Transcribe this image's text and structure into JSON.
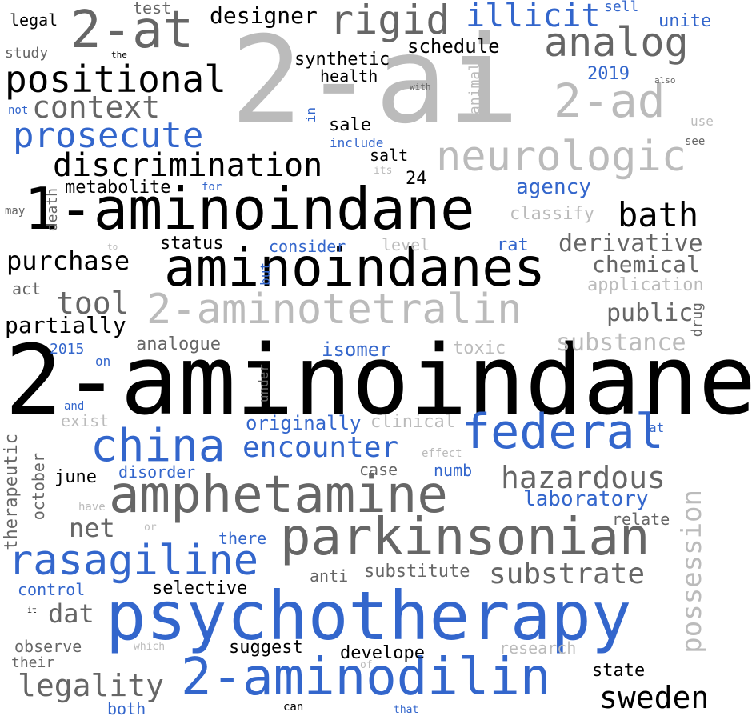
{
  "colors": {
    "black": "#000000",
    "dark_gray": "#666666",
    "light_gray": "#bbbbbb",
    "blue": "#3366cc"
  },
  "words": [
    {
      "id": "2-ai",
      "text": "2-ai"
    },
    {
      "id": "2-aminoindane",
      "text": "2-aminoindane"
    },
    {
      "id": "1-aminoindane",
      "text": "1-aminoindane"
    },
    {
      "id": "aminoindanes",
      "text": "aminoindanes"
    },
    {
      "id": "psychotherapy",
      "text": "psychotherapy"
    },
    {
      "id": "2-aminotetralin",
      "text": "2-aminotetralin"
    },
    {
      "id": "amphetamine",
      "text": "amphetamine"
    },
    {
      "id": "parkinsonian",
      "text": "parkinsonian"
    },
    {
      "id": "2-aminodilin",
      "text": "2-aminodilin"
    },
    {
      "id": "2-at",
      "text": "2-at"
    },
    {
      "id": "federal",
      "text": "federal"
    },
    {
      "id": "neurologic",
      "text": "neurologic"
    },
    {
      "id": "2-ad",
      "text": "2-ad"
    },
    {
      "id": "china",
      "text": "china"
    },
    {
      "id": "rasagiline",
      "text": "rasagiline"
    },
    {
      "id": "positional",
      "text": "positional"
    },
    {
      "id": "analog",
      "text": "analog"
    },
    {
      "id": "discrimination",
      "text": "discrimination"
    },
    {
      "id": "rigid",
      "text": "rigid"
    },
    {
      "id": "encounter",
      "text": "encounter"
    },
    {
      "id": "prosecute",
      "text": "prosecute"
    },
    {
      "id": "illicit",
      "text": "illicit"
    },
    {
      "id": "hazardous",
      "text": "hazardous"
    },
    {
      "id": "substrate",
      "text": "substrate"
    },
    {
      "id": "possession",
      "text": "possession"
    },
    {
      "id": "context",
      "text": "context"
    },
    {
      "id": "purchase",
      "text": "purchase"
    },
    {
      "id": "bath",
      "text": "bath"
    },
    {
      "id": "tool",
      "text": "tool"
    },
    {
      "id": "legality",
      "text": "legality"
    },
    {
      "id": "sweden",
      "text": "sweden"
    },
    {
      "id": "derivative",
      "text": "derivative"
    },
    {
      "id": "substance",
      "text": "substance"
    },
    {
      "id": "partially",
      "text": "partially"
    },
    {
      "id": "designer",
      "text": "designer"
    },
    {
      "id": "chemical",
      "text": "chemical"
    },
    {
      "id": "public",
      "text": "public"
    },
    {
      "id": "net",
      "text": "net"
    },
    {
      "id": "dat",
      "text": "dat"
    },
    {
      "id": "originally",
      "text": "originally"
    },
    {
      "id": "laboratory",
      "text": "laboratory"
    },
    {
      "id": "agency",
      "text": "agency"
    },
    {
      "id": "synthetic",
      "text": "synthetic"
    },
    {
      "id": "schedule",
      "text": "schedule"
    },
    {
      "id": "metabolite",
      "text": "metabolite"
    },
    {
      "id": "isomer",
      "text": "isomer"
    },
    {
      "id": "classify",
      "text": "classify"
    },
    {
      "id": "application",
      "text": "application"
    },
    {
      "id": "analogue",
      "text": "analogue"
    },
    {
      "id": "substitute",
      "text": "substitute"
    },
    {
      "id": "clinical",
      "text": "clinical"
    },
    {
      "id": "status",
      "text": "status"
    },
    {
      "id": "consider",
      "text": "consider"
    },
    {
      "id": "health",
      "text": "health"
    },
    {
      "id": "disorder",
      "text": "disorder"
    },
    {
      "id": "toxic",
      "text": "toxic"
    },
    {
      "id": "selective",
      "text": "selective"
    },
    {
      "id": "control",
      "text": "control"
    },
    {
      "id": "observe",
      "text": "observe"
    },
    {
      "id": "develope",
      "text": "develope"
    },
    {
      "id": "research",
      "text": "research"
    },
    {
      "id": "suggest",
      "text": "suggest"
    },
    {
      "id": "state",
      "text": "state"
    },
    {
      "id": "relate",
      "text": "relate"
    },
    {
      "id": "therapeutic",
      "text": "therapeutic"
    },
    {
      "id": "october",
      "text": "october"
    },
    {
      "id": "june",
      "text": "june"
    },
    {
      "id": "death",
      "text": "death"
    },
    {
      "id": "exist",
      "text": "exist"
    },
    {
      "id": "2019",
      "text": "2019"
    },
    {
      "id": "2015",
      "text": "2015"
    },
    {
      "id": "24",
      "text": "24"
    },
    {
      "id": "sale",
      "text": "sale"
    },
    {
      "id": "salt",
      "text": "salt"
    },
    {
      "id": "case",
      "text": "case"
    },
    {
      "id": "numb",
      "text": "numb"
    },
    {
      "id": "there",
      "text": "there"
    },
    {
      "id": "anti",
      "text": "anti"
    },
    {
      "id": "act",
      "text": "act"
    },
    {
      "id": "rat",
      "text": "rat"
    },
    {
      "id": "level",
      "text": "level"
    },
    {
      "id": "drug",
      "text": "drug"
    },
    {
      "id": "animal",
      "text": "animal"
    },
    {
      "id": "under",
      "text": "under"
    },
    {
      "id": "legal",
      "text": "legal"
    },
    {
      "id": "test",
      "text": "test"
    },
    {
      "id": "sell",
      "text": "sell"
    },
    {
      "id": "unite",
      "text": "unite"
    },
    {
      "id": "study",
      "text": "study"
    },
    {
      "id": "their",
      "text": "their"
    },
    {
      "id": "both",
      "text": "both"
    },
    {
      "id": "include",
      "text": "include"
    },
    {
      "id": "in",
      "text": "in"
    },
    {
      "id": "use",
      "text": "use"
    },
    {
      "id": "see",
      "text": "see"
    },
    {
      "id": "also",
      "text": "also"
    },
    {
      "id": "with",
      "text": "with"
    },
    {
      "id": "not",
      "text": "not"
    },
    {
      "id": "the",
      "text": "the"
    },
    {
      "id": "its",
      "text": "its"
    },
    {
      "id": "for",
      "text": "for"
    },
    {
      "id": "may",
      "text": "may"
    },
    {
      "id": "to",
      "text": "to"
    },
    {
      "id": "but",
      "text": "but"
    },
    {
      "id": "on",
      "text": "on"
    },
    {
      "id": "and",
      "text": "and"
    },
    {
      "id": "effect",
      "text": "effect"
    },
    {
      "id": "at",
      "text": "at"
    },
    {
      "id": "have",
      "text": "have"
    },
    {
      "id": "or",
      "text": "or"
    },
    {
      "id": "it",
      "text": "it"
    },
    {
      "id": "which",
      "text": "which"
    },
    {
      "id": "of",
      "text": "of"
    },
    {
      "id": "can",
      "text": "can"
    },
    {
      "id": "that",
      "text": "that"
    }
  ]
}
